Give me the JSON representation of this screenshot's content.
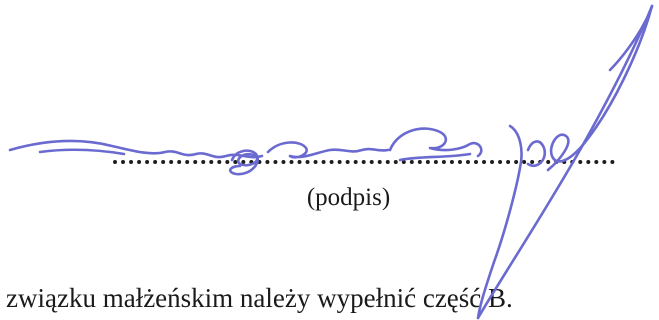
{
  "signature_caption": "(podpis)",
  "note_text": "związku małżeńskim należy wypełnić część B.",
  "colors": {
    "ink": "#1a1a1a",
    "signature_ink": "#6a6ad0"
  }
}
